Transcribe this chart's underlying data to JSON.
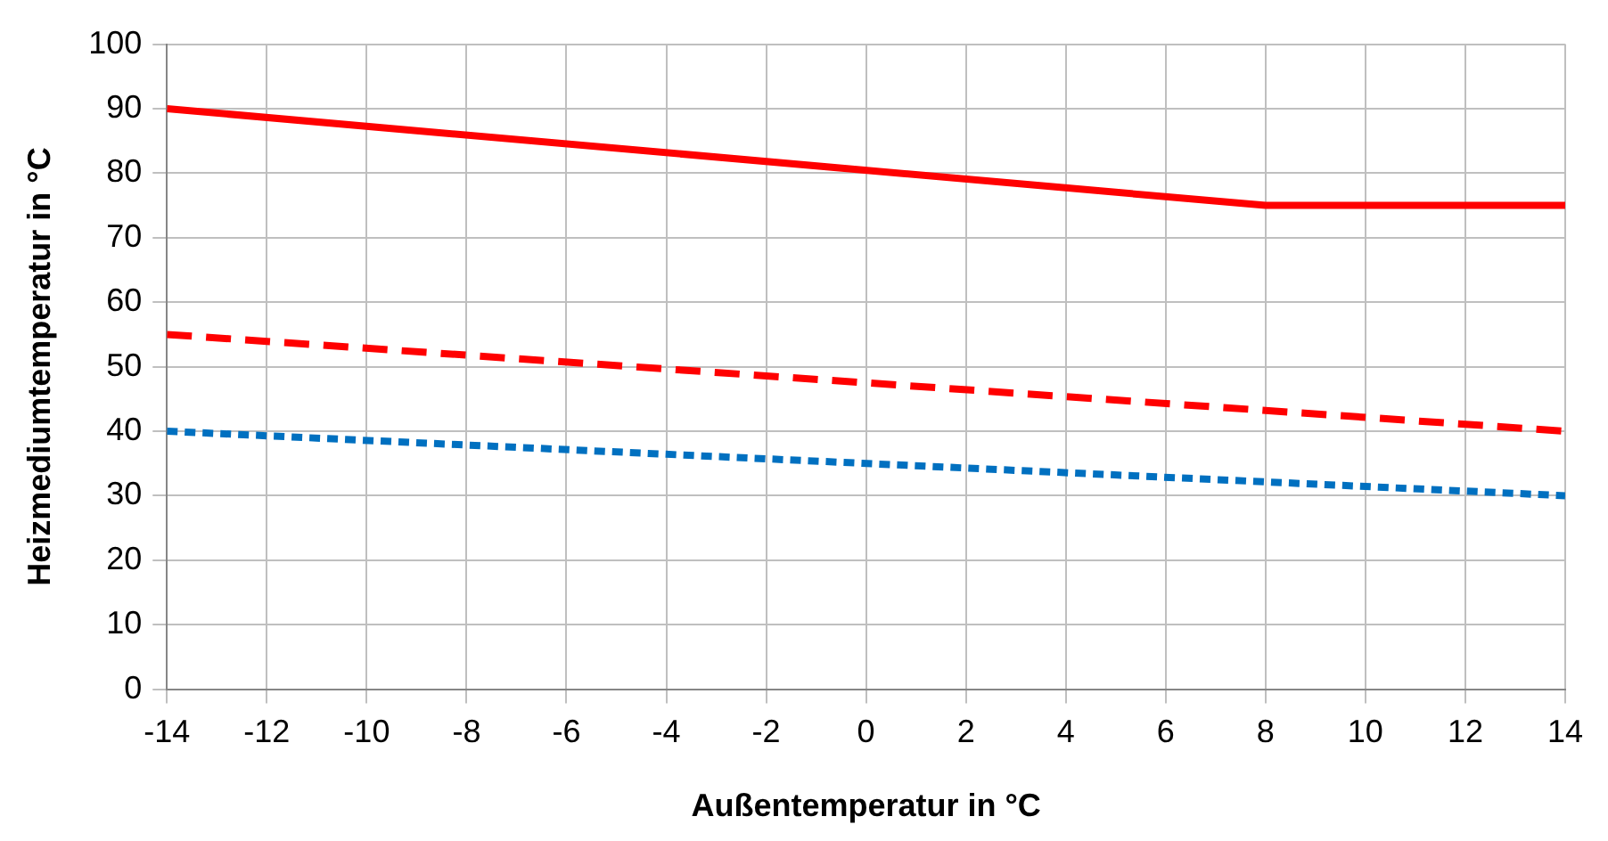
{
  "chart_data": {
    "type": "line",
    "xlabel": "Außentemperatur in °C",
    "ylabel": "Heizmediumtemperatur in °C",
    "xlim": [
      -14,
      14
    ],
    "xticks": [
      -14,
      -12,
      -10,
      -8,
      -6,
      -4,
      -2,
      0,
      2,
      4,
      6,
      8,
      10,
      12,
      14
    ],
    "ylim": [
      0,
      100
    ],
    "yticks": [
      0,
      10,
      20,
      30,
      40,
      50,
      60,
      70,
      80,
      90,
      100
    ],
    "grid": true,
    "legend": false,
    "marker": "none",
    "series": [
      {
        "color": "#ff0000",
        "line_style": "solid",
        "x": [
          -14,
          8,
          14
        ],
        "values": [
          90,
          75,
          75
        ]
      },
      {
        "color": "#ff0000",
        "line_style": "dashed",
        "x": [
          -14,
          14
        ],
        "values": [
          55,
          40
        ]
      },
      {
        "color": "#0070c0",
        "line_style": "dotted",
        "x": [
          -14,
          14
        ],
        "values": [
          40,
          30
        ]
      }
    ]
  }
}
